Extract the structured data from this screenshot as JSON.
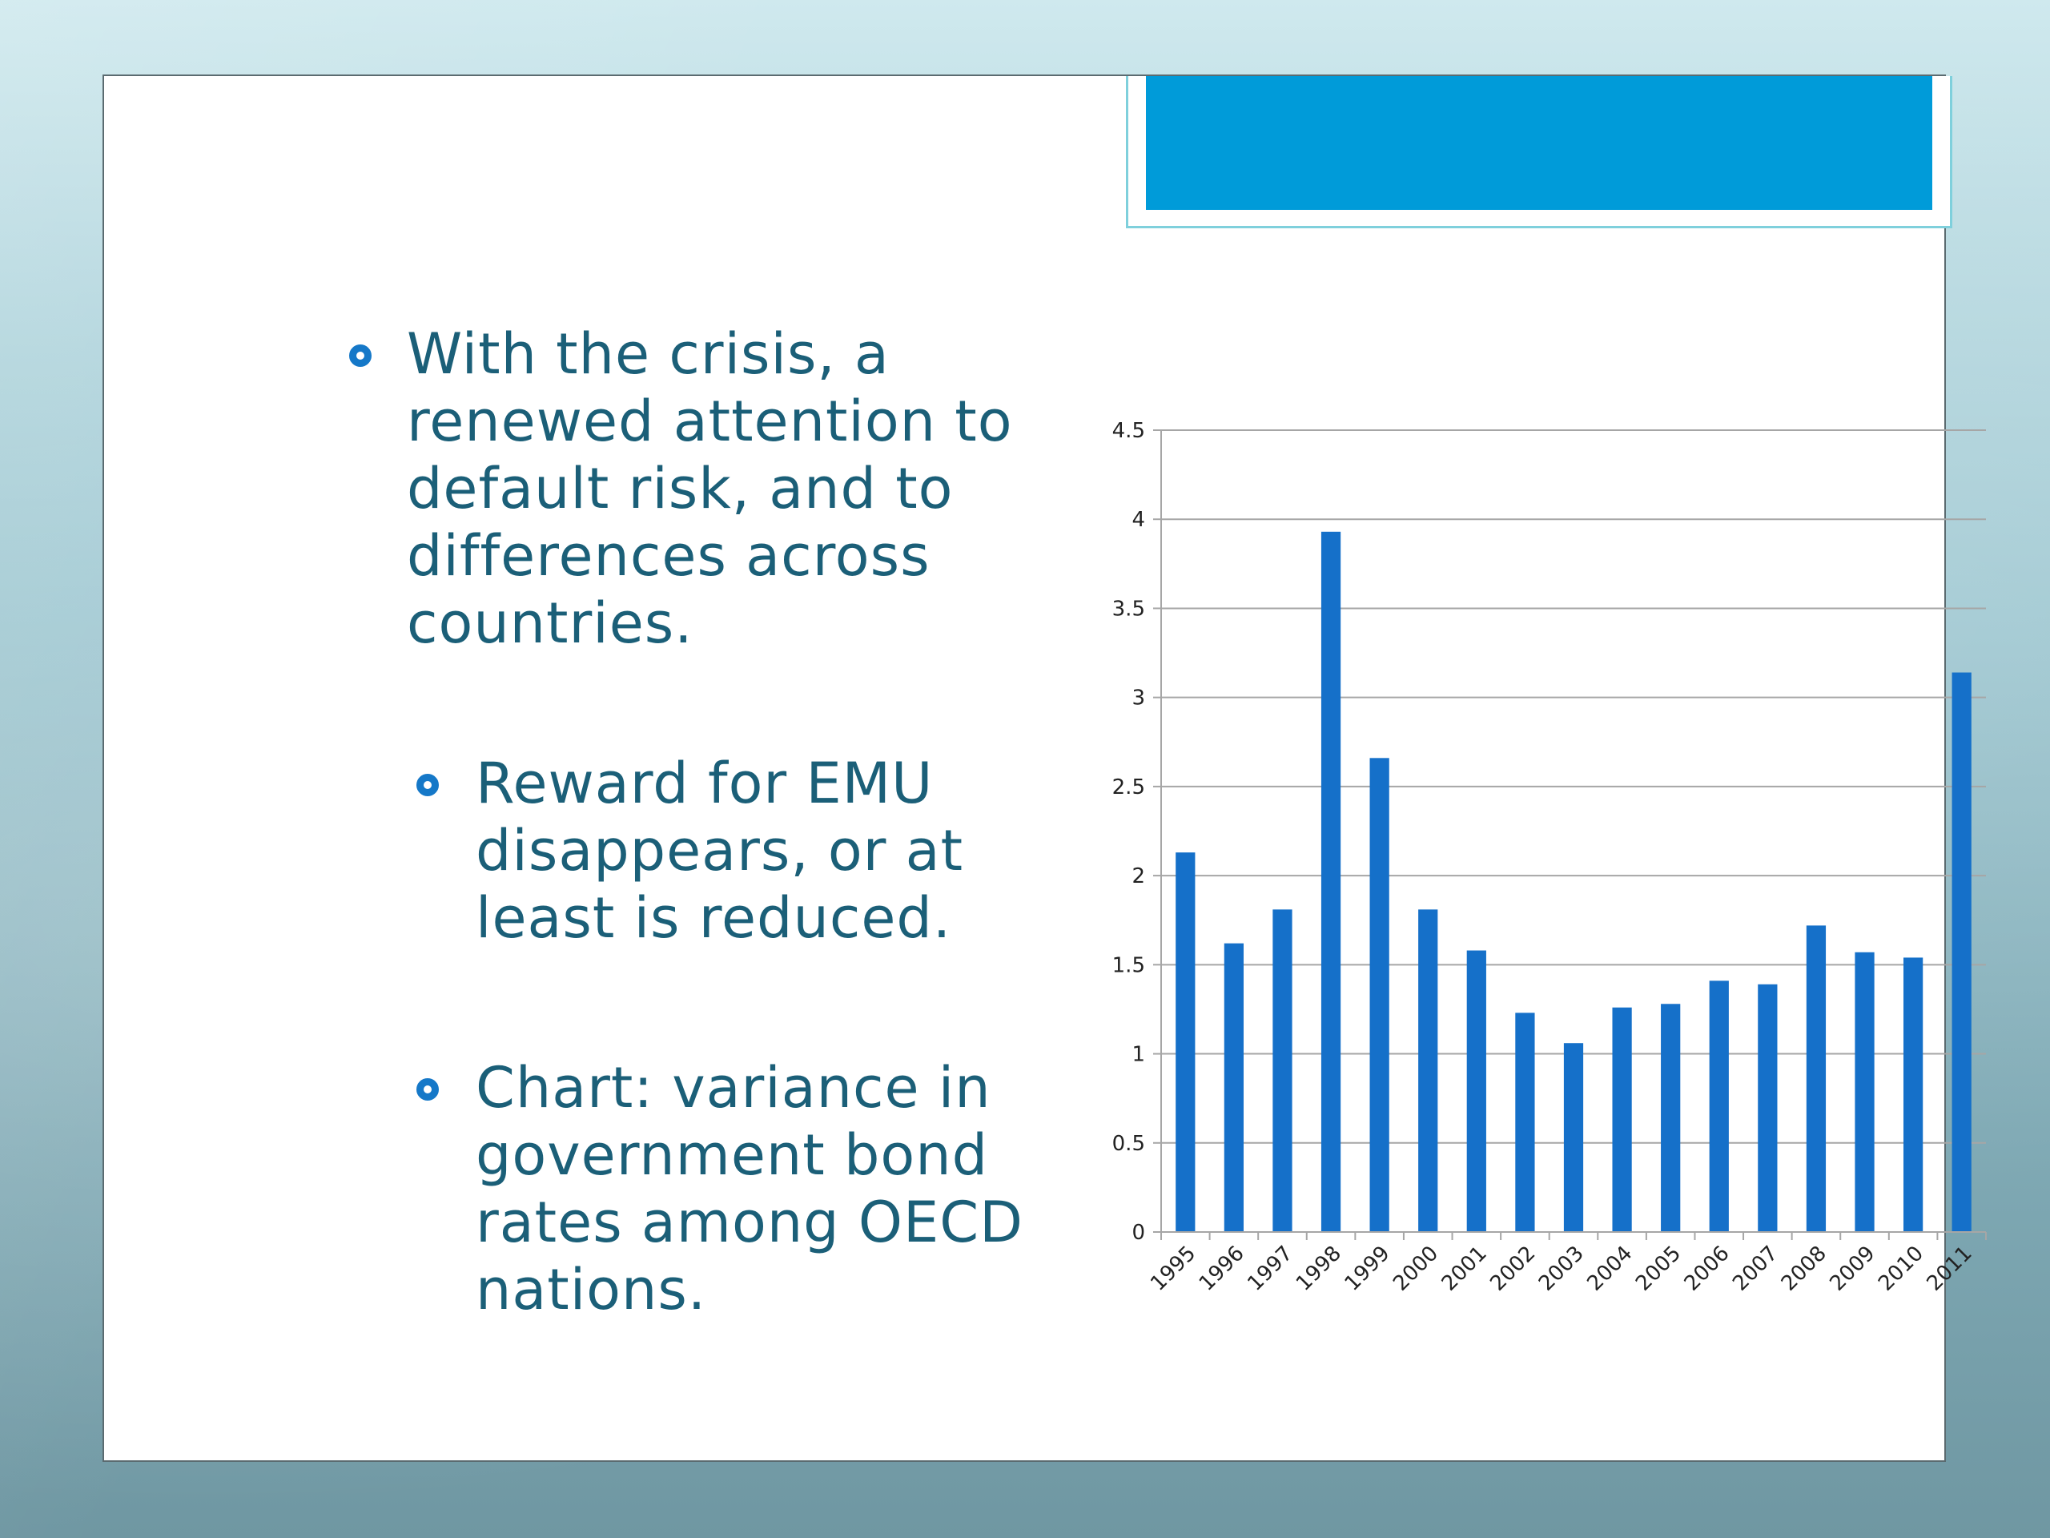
{
  "slide": {
    "bullets": [
      {
        "text": "With the crisis, a renewed attention to default risk, and to differences across countries."
      },
      {
        "text": "Reward for EMU disappears, or at least is reduced."
      },
      {
        "text": "Chart: variance in government bond rates among OECD nations."
      }
    ]
  },
  "colors": {
    "bar": "#1570c9",
    "title_bar": "#009bd9",
    "text": "#1b5f78",
    "grid": "#a6a6a6"
  },
  "chart_data": {
    "type": "bar",
    "categories": [
      "1995",
      "1996",
      "1997",
      "1998",
      "1999",
      "2000",
      "2001",
      "2002",
      "2003",
      "2004",
      "2005",
      "2006",
      "2007",
      "2008",
      "2009",
      "2010",
      "2011"
    ],
    "values": [
      2.13,
      1.62,
      1.81,
      3.93,
      2.66,
      1.81,
      1.58,
      1.23,
      1.06,
      1.26,
      1.28,
      1.41,
      1.39,
      1.72,
      1.57,
      1.54,
      3.14
    ],
    "ylim": [
      0,
      4.5
    ],
    "yticks": [
      "0",
      "0.5",
      "1",
      "1.5",
      "2",
      "2.5",
      "3",
      "3.5",
      "4",
      "4.5"
    ],
    "title": "",
    "xlabel": "",
    "ylabel": "",
    "grid": true,
    "legend": "none"
  }
}
